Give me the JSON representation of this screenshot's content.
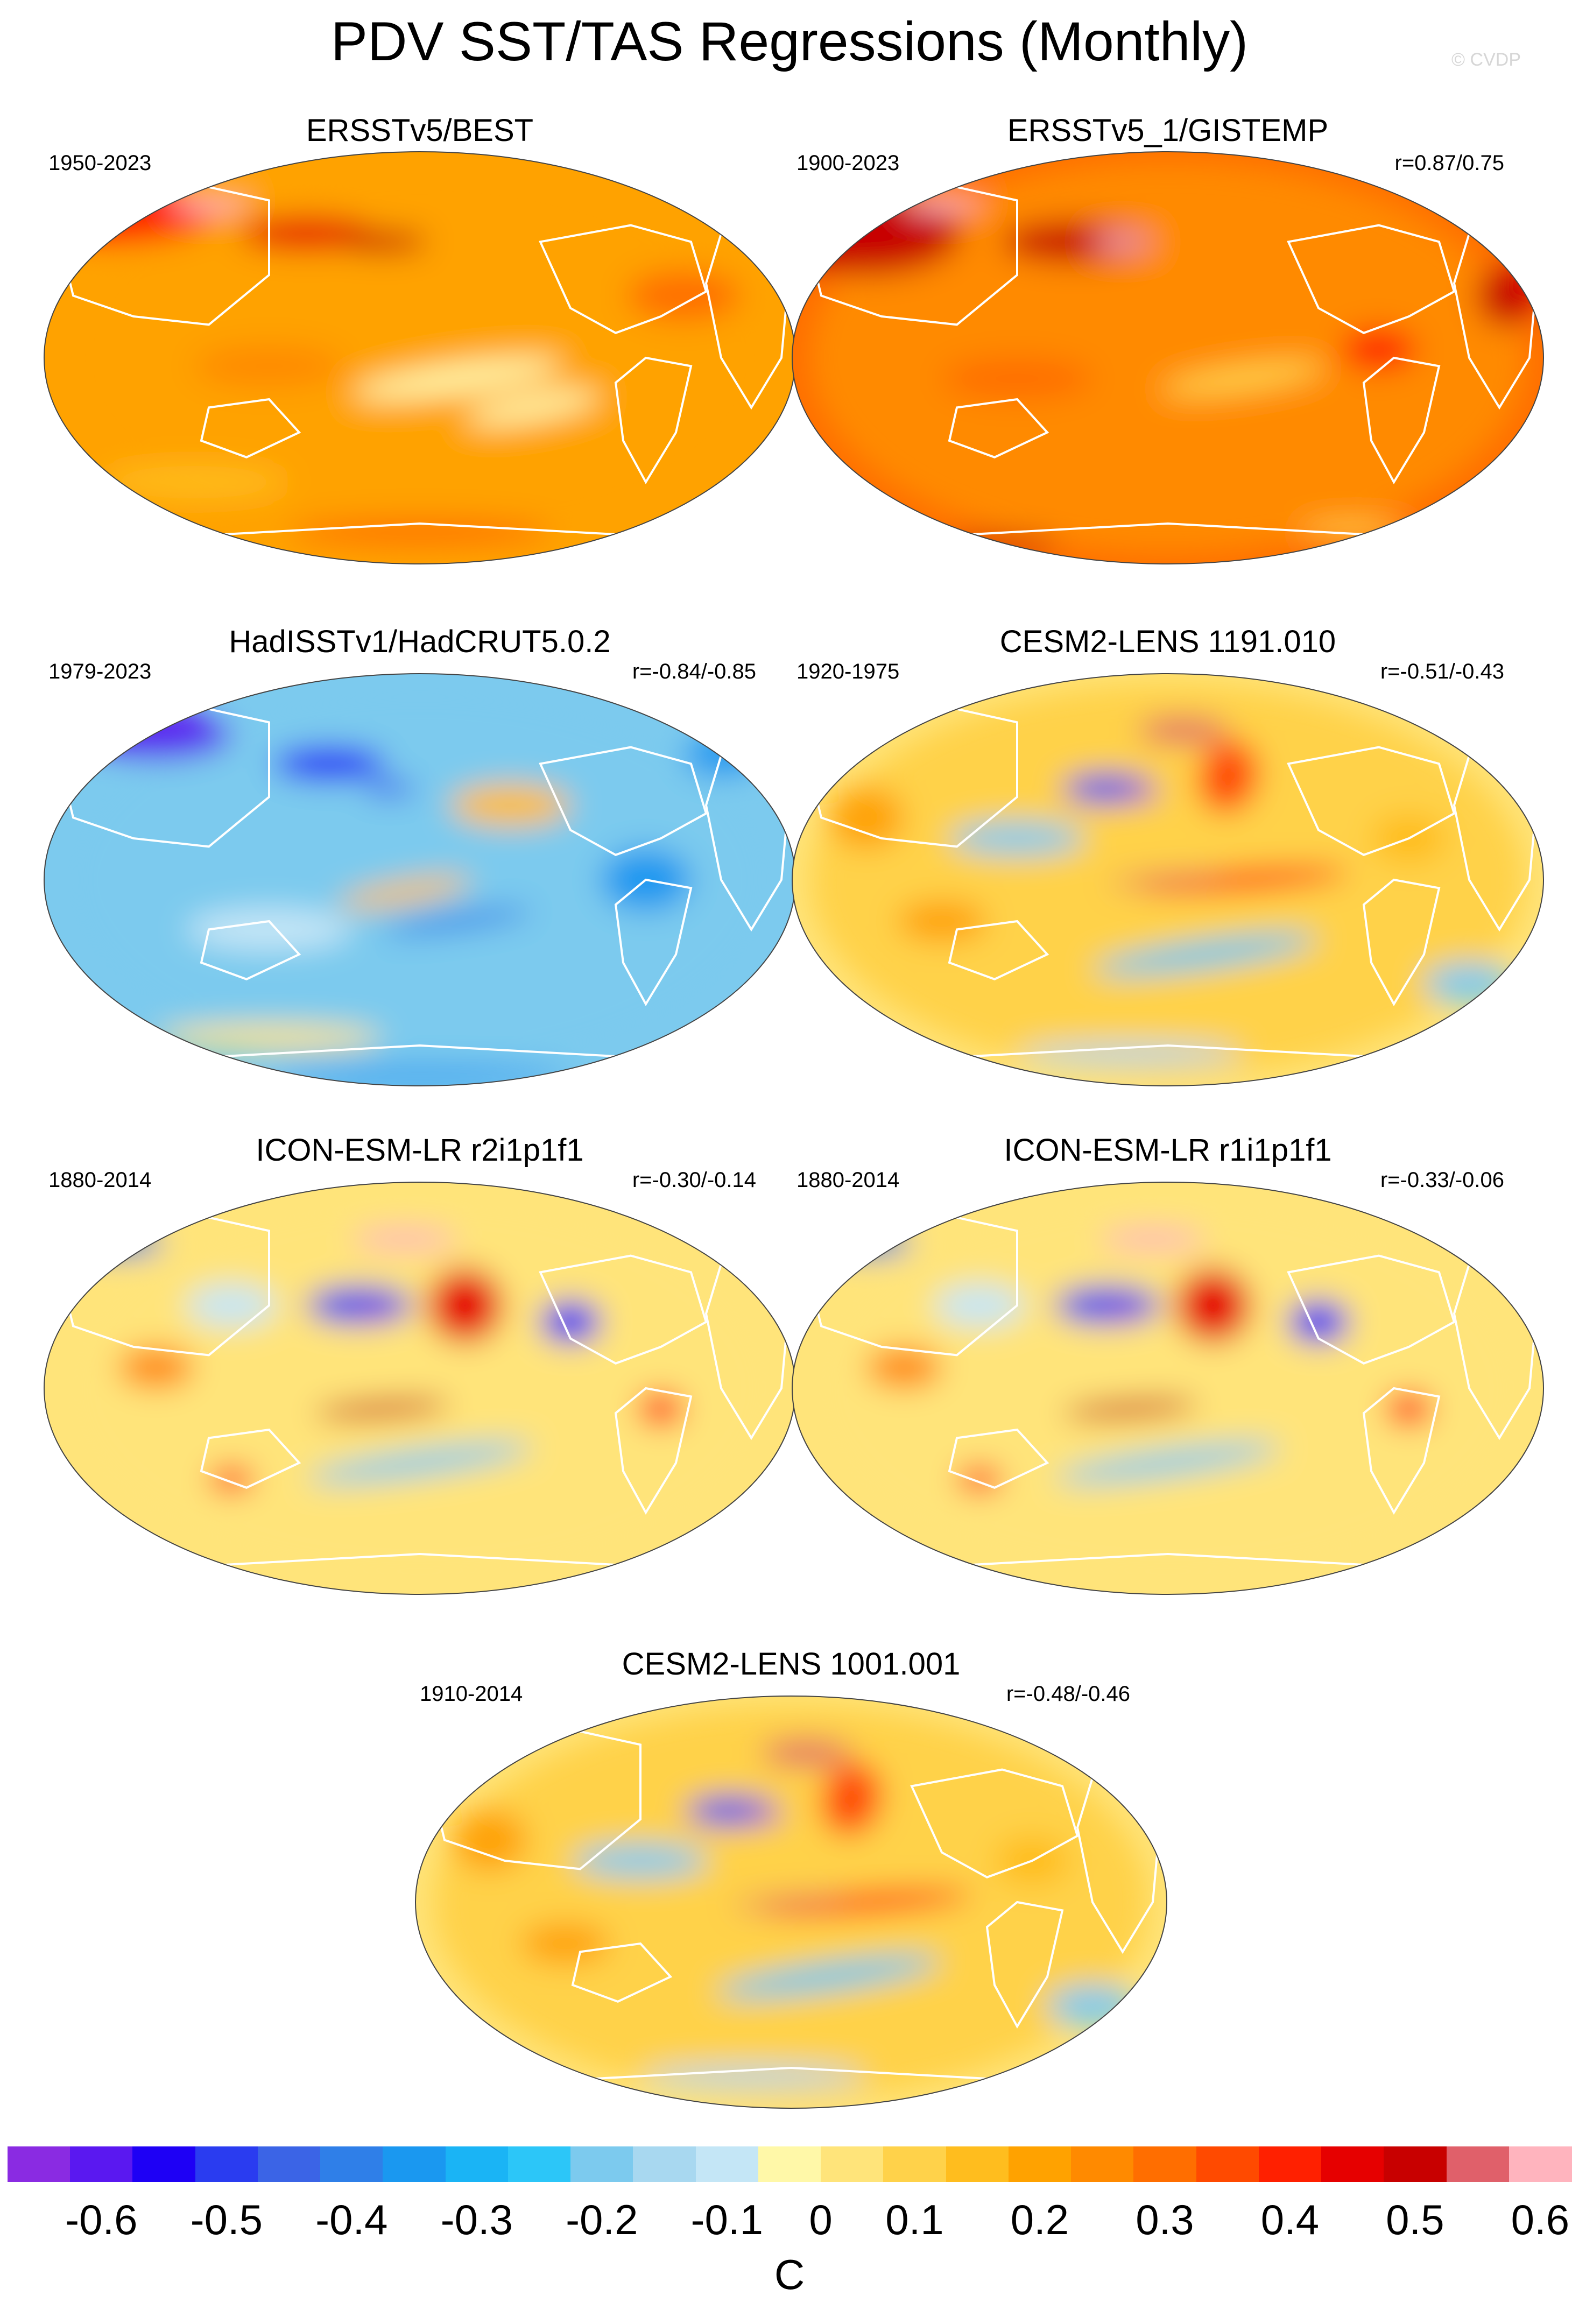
{
  "title": "PDV SST/TAS Regressions (Monthly)",
  "watermark": "© CVDP",
  "panels": [
    {
      "title": "ERSSTv5/BEST",
      "left": "1950-2023",
      "right": "",
      "pattern": "obs_warm"
    },
    {
      "title": "ERSSTv5_1/GISTEMP",
      "left": "1900-2023",
      "right": "r=0.87/0.75",
      "pattern": "obs_warm2"
    },
    {
      "title": "HadISSTv1/HadCRUT5.0.2",
      "left": "1979-2023",
      "right": "r=-0.84/-0.85",
      "pattern": "obs_cool"
    },
    {
      "title": "CESM2-LENS 1191.010",
      "left": "1920-1975",
      "right": "r=-0.51/-0.43",
      "pattern": "pdo"
    },
    {
      "title": "ICON-ESM-LR r2i1p1f1",
      "left": "1880-2014",
      "right": "r=-0.30/-0.14",
      "pattern": "pdo_strong"
    },
    {
      "title": "ICON-ESM-LR r1i1p1f1",
      "left": "1880-2014",
      "right": "r=-0.33/-0.06",
      "pattern": "pdo_strong"
    },
    {
      "title": "CESM2-LENS 1001.001",
      "left": "1910-2014",
      "right": "r=-0.48/-0.46",
      "pattern": "pdo"
    }
  ],
  "colorbar": {
    "unit": "C",
    "tick_labels": [
      "-0.6",
      "-0.5",
      "-0.4",
      "-0.3",
      "-0.2",
      "-0.1",
      "0",
      "0.1",
      "0.2",
      "0.3",
      "0.4",
      "0.5",
      "0.6"
    ],
    "colors": [
      "#8a2be2",
      "#5a18f0",
      "#1e00f5",
      "#2a3cf0",
      "#3b64e6",
      "#2f7fe8",
      "#1a98f0",
      "#1ab4f5",
      "#2cc6f8",
      "#7ccaee",
      "#a8d8f0",
      "#c4e6f6",
      "#fff8a8",
      "#ffe47a",
      "#ffd24a",
      "#ffbd1e",
      "#ffa200",
      "#ff8a00",
      "#ff6e00",
      "#ff4a00",
      "#ff2000",
      "#e60000",
      "#c80000",
      "#e0606a",
      "#ffb4be"
    ]
  }
}
